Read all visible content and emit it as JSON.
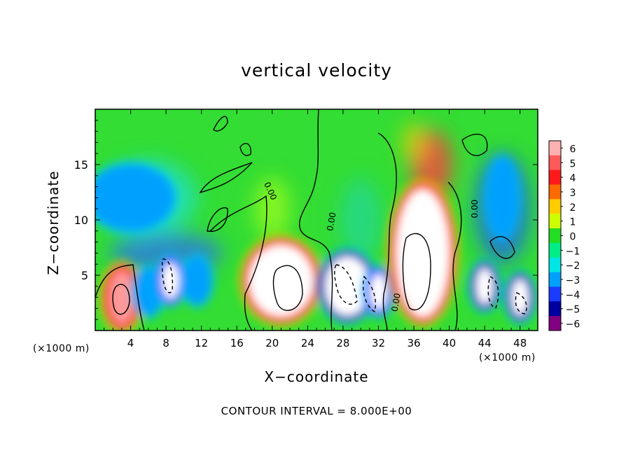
{
  "chart_data": {
    "type": "heatmap",
    "title": "vertical velocity",
    "xlabel": "X−coordinate",
    "ylabel": "Z−coordinate",
    "x_unit_label": "(×1000 m)",
    "x_ticks": [
      4,
      8,
      12,
      16,
      20,
      24,
      28,
      32,
      36,
      40,
      44,
      48
    ],
    "y_ticks": [
      5,
      10,
      15
    ],
    "xlim": [
      0,
      50
    ],
    "ylim": [
      0,
      20
    ],
    "footnote": "CONTOUR INTERVAL = 8.000E+00",
    "colorbar": {
      "levels": [
        6,
        5,
        4,
        3,
        2,
        1,
        0,
        -1,
        -2,
        -3,
        -4,
        -5,
        -6
      ],
      "labels": [
        "6",
        "5",
        "4",
        "3",
        "2",
        "1",
        "0",
        "−1",
        "−2",
        "−3",
        "−4",
        "−5",
        "−6"
      ],
      "colors": [
        "#ffb0b0",
        "#ff5a5a",
        "#ff1a1a",
        "#ff6a00",
        "#ffcc00",
        "#ccff00",
        "#22dd22",
        "#00ee88",
        "#00e5e5",
        "#00a0ff",
        "#1a3cff",
        "#0000a0",
        "#800080"
      ]
    },
    "cells": [
      {
        "x": 3,
        "z": 3,
        "w": 4
      },
      {
        "x": 6,
        "z": 3.5,
        "w": -3
      },
      {
        "x": 8.5,
        "z": 4.5,
        "w": -4
      },
      {
        "x": 11.5,
        "z": 4.5,
        "w": -3
      },
      {
        "x": 21,
        "z": 4.5,
        "w": 5
      },
      {
        "x": 28.5,
        "z": 4,
        "w": -5
      },
      {
        "x": 32,
        "z": 3.5,
        "w": -4
      },
      {
        "x": 37,
        "z": 7,
        "w": 6
      },
      {
        "x": 44,
        "z": 4,
        "w": -5
      },
      {
        "x": 48,
        "z": 3,
        "w": -5
      },
      {
        "x": 46,
        "z": 12,
        "w": -3
      },
      {
        "x": 4,
        "z": 12,
        "w": -2
      }
    ],
    "contour_labels": [
      {
        "text": "0.00",
        "x": 19.5,
        "z": 12.5,
        "angle": 65
      },
      {
        "text": "0.00",
        "x": 27,
        "z": 9.8,
        "angle": -80
      },
      {
        "text": "0.00",
        "x": 34.3,
        "z": 2.5,
        "angle": -80
      },
      {
        "text": "0.00",
        "x": 43.2,
        "z": 11,
        "angle": -90
      }
    ]
  }
}
